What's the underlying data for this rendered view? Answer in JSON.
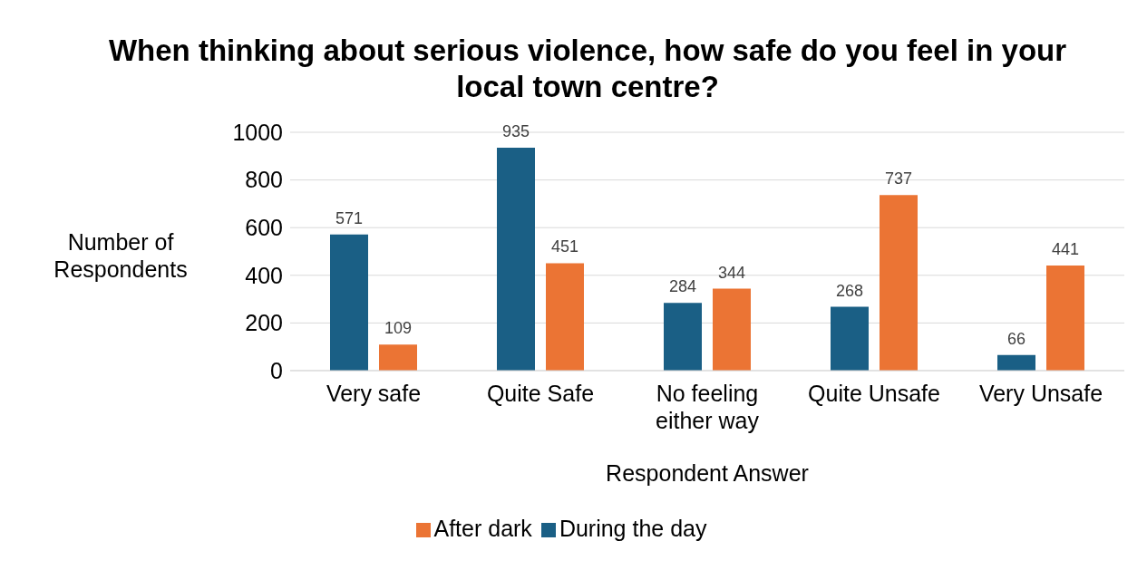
{
  "chart_data": {
    "type": "bar",
    "title": "When thinking about serious violence, how safe do you feel in your local town centre?",
    "xlabel": "Respondent Answer",
    "ylabel": "Number of Respondents",
    "categories": [
      "Very safe",
      "Quite Safe",
      "No feeling either way",
      "Quite Unsafe",
      "Very Unsafe"
    ],
    "series": [
      {
        "name": "During the day",
        "color": "#1a5f85",
        "values": [
          571,
          935,
          284,
          268,
          66
        ]
      },
      {
        "name": "After dark",
        "color": "#eb7434",
        "values": [
          109,
          451,
          344,
          737,
          441
        ]
      }
    ],
    "ylim": [
      0,
      1000
    ],
    "yticks": [
      0,
      200,
      400,
      600,
      800,
      1000
    ],
    "grid": "y",
    "legend": "bottom",
    "data_labels": true
  }
}
